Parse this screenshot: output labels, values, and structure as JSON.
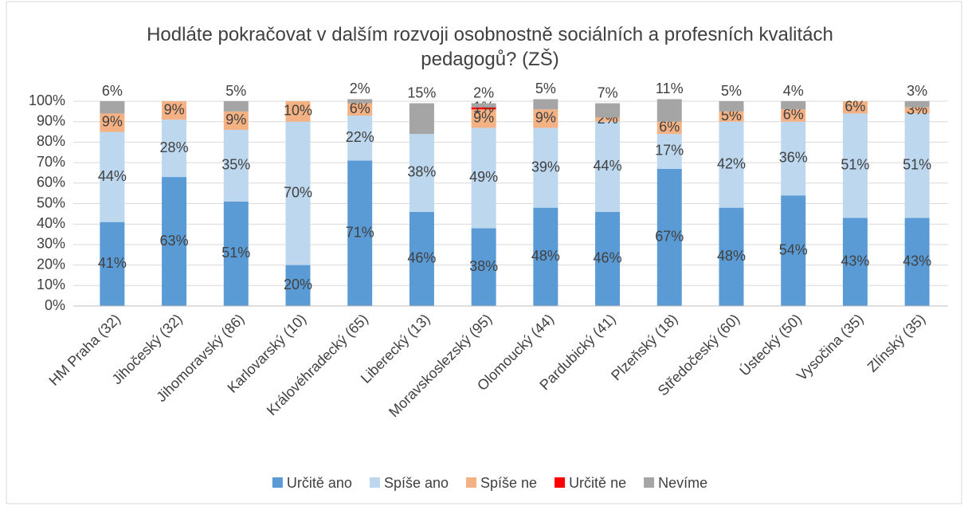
{
  "chart_data": {
    "type": "stacked_bar",
    "title": "Hodláte pokračovat v dalším rozvoji osobnostně sociálních a profesních kvalitách pedagogů? (ZŠ)",
    "categories": [
      "HM Praha (32)",
      "Jihočeský  (32)",
      "Jihomoravský (86)",
      "Karlovarský (10)",
      "Královéhradecký (65)",
      "Liberecký (13)",
      "Moravskoslezský (95)",
      "Olomoucký (44)",
      "Pardubický (41)",
      "Plzeňský (18)",
      "Středočeský (60)",
      "Ústecký (50)",
      "Vysočina (35)",
      "Zlínský (35)"
    ],
    "series": [
      {
        "name": "Určitě ano",
        "color": "#5b9bd5",
        "values": [
          41,
          63,
          51,
          20,
          71,
          46,
          38,
          48,
          46,
          67,
          48,
          54,
          43,
          43
        ],
        "value_labels": [
          "41%",
          "63%",
          "51%",
          "20%",
          "71%",
          "46%",
          "38%",
          "48%",
          "46%",
          "67%",
          "48%",
          "54%",
          "43%",
          "43%"
        ]
      },
      {
        "name": "Spíše ano",
        "color": "#bdd7ee",
        "values": [
          44,
          28,
          35,
          70,
          22,
          38,
          49,
          39,
          44,
          17,
          42,
          36,
          51,
          51
        ],
        "value_labels": [
          "44%",
          "28%",
          "35%",
          "70%",
          "22%",
          "38%",
          "49%",
          "39%",
          "44%",
          "17%",
          "42%",
          "36%",
          "51%",
          "51%"
        ]
      },
      {
        "name": "Spíše ne",
        "color": "#f4b183",
        "values": [
          9,
          9,
          9,
          10,
          6,
          null,
          9,
          9,
          2,
          6,
          5,
          6,
          6,
          3
        ],
        "value_labels": [
          "9%",
          "9%",
          "9%",
          "10%",
          "6%",
          null,
          "9%",
          "9%",
          "2%",
          "6%",
          "5%",
          "6%",
          "6%",
          "3%"
        ]
      },
      {
        "name": "Určitě ne",
        "color": "#ff0000",
        "values": [
          null,
          null,
          null,
          null,
          null,
          null,
          1,
          null,
          null,
          null,
          null,
          null,
          null,
          null
        ],
        "value_labels": [
          null,
          null,
          null,
          null,
          null,
          null,
          "1%",
          null,
          null,
          null,
          null,
          null,
          null,
          null
        ]
      },
      {
        "name": "Nevíme",
        "color": "#a5a5a5",
        "values": [
          6,
          null,
          5,
          null,
          2,
          15,
          2,
          5,
          7,
          11,
          5,
          4,
          null,
          3
        ],
        "value_labels": [
          "6%",
          null,
          "5%",
          null,
          "2%",
          "15%",
          "2%",
          "5%",
          "7%",
          "11%",
          "5%",
          "4%",
          null,
          "3%"
        ]
      }
    ],
    "ylim": [
      0,
      100
    ],
    "yticks": [
      {
        "value": 0,
        "label": "0%"
      },
      {
        "value": 10,
        "label": "10%"
      },
      {
        "value": 20,
        "label": "20%"
      },
      {
        "value": 30,
        "label": "30%"
      },
      {
        "value": 40,
        "label": "40%"
      },
      {
        "value": 50,
        "label": "50%"
      },
      {
        "value": 60,
        "label": "60%"
      },
      {
        "value": 70,
        "label": "70%"
      },
      {
        "value": 80,
        "label": "80%"
      },
      {
        "value": 90,
        "label": "90%"
      },
      {
        "value": 100,
        "label": "100%"
      }
    ],
    "grid": true,
    "legend": "bottom"
  }
}
